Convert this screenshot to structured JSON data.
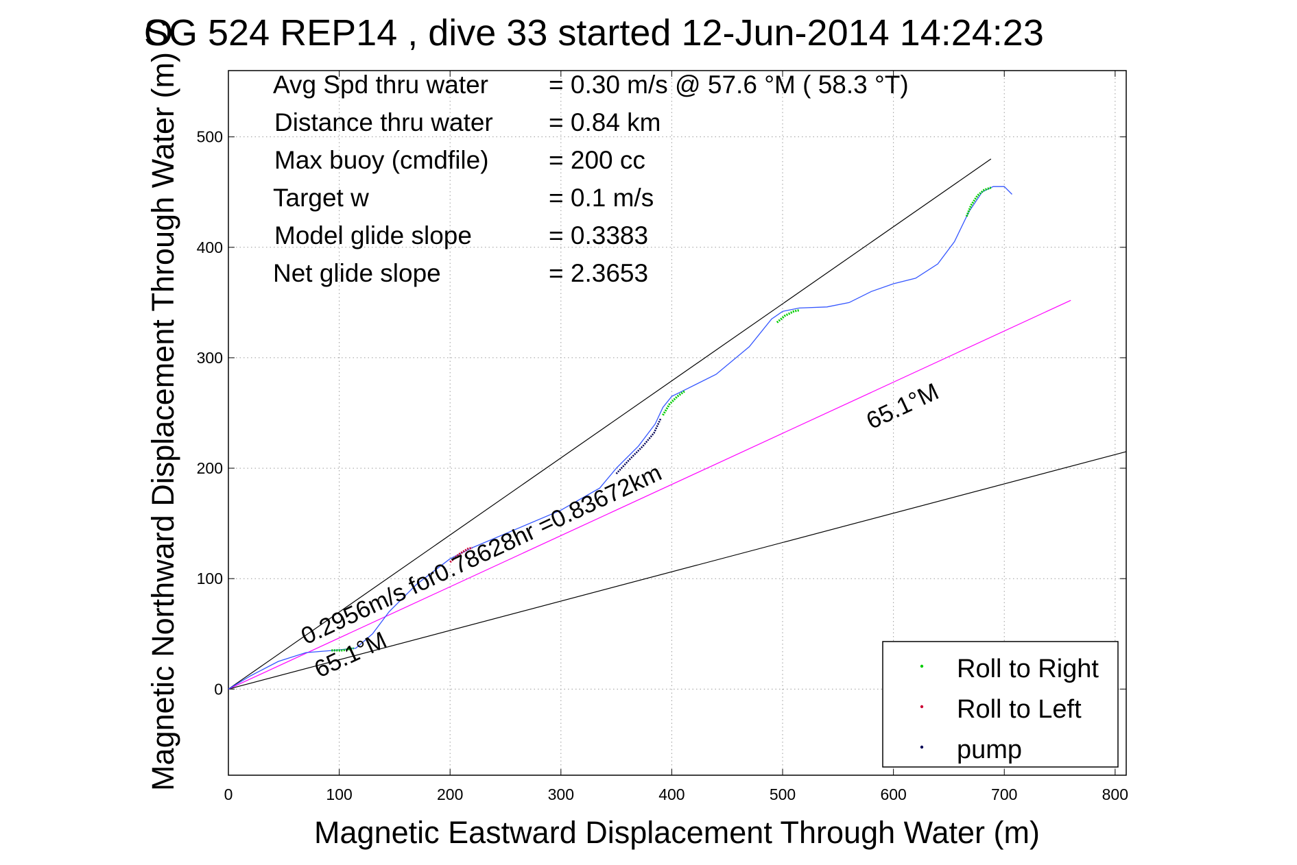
{
  "chart_data": {
    "type": "line",
    "title": "SG 524   REP14  , dive 33 started 12-Jun-2014 14:24:23",
    "title_overlap_char": "O",
    "xlabel": "Magnetic Eastward Displacement Through Water (m)",
    "ylabel": "Magnetic Northward Displacement Through Water (m)",
    "xlim": [
      0,
      810
    ],
    "ylim": [
      -78,
      560
    ],
    "xticks": [
      0,
      100,
      200,
      300,
      400,
      500,
      600,
      700,
      800
    ],
    "yticks": [
      0,
      100,
      200,
      300,
      400,
      500
    ],
    "xtick_labels": [
      "0",
      "100",
      "200",
      "300",
      "400",
      "500",
      "600",
      "700",
      "800"
    ],
    "ytick_labels": [
      "0",
      "100",
      "200",
      "300",
      "400",
      "500"
    ],
    "grid": true,
    "legend_position": "bottom-right",
    "stats": [
      {
        "label": "Avg Spd thru water",
        "value": "=  0.30 m/s @  57.6 °M ( 58.3 °T)"
      },
      {
        "label": "Distance thru water",
        "value": "=  0.84 km"
      },
      {
        "label": "Max buoy (cmdfile)",
        "value": "= 200 cc"
      },
      {
        "label": "Target w",
        "value": "= 0.1 m/s"
      },
      {
        "label": "Model glide slope",
        "value": "= 0.3383"
      },
      {
        "label": "Net glide slope",
        "value": "= 2.3653"
      }
    ],
    "track": {
      "color": "#3355ff",
      "x": [
        0,
        20,
        45,
        70,
        95,
        115,
        130,
        145,
        170,
        200,
        220,
        260,
        300,
        335,
        350,
        370,
        385,
        392,
        400,
        410,
        440,
        470,
        490,
        500,
        515,
        540,
        560,
        580,
        600,
        620,
        640,
        655,
        668,
        680,
        690,
        700,
        707
      ],
      "y": [
        0,
        12,
        25,
        33,
        35,
        37,
        50,
        70,
        95,
        118,
        128,
        145,
        162,
        182,
        200,
        220,
        240,
        255,
        265,
        270,
        285,
        310,
        335,
        342,
        345,
        346,
        350,
        360,
        367,
        372,
        385,
        405,
        432,
        450,
        455,
        455,
        448
      ]
    },
    "roll_right": {
      "color": "#00cc00",
      "segments": [
        {
          "x": [
            93,
            103,
            113
          ],
          "y": [
            35,
            35,
            37
          ]
        },
        {
          "x": [
            392,
            398,
            405,
            412
          ],
          "y": [
            248,
            258,
            265,
            270
          ]
        },
        {
          "x": [
            495,
            502,
            510,
            515
          ],
          "y": [
            332,
            338,
            342,
            343
          ]
        },
        {
          "x": [
            666,
            670,
            676,
            682,
            688
          ],
          "y": [
            428,
            438,
            447,
            452,
            454
          ]
        }
      ]
    },
    "roll_left": {
      "color": "#cc0033",
      "segments": [
        {
          "x": [
            200,
            208,
            216,
            220
          ],
          "y": [
            115,
            122,
            127,
            128
          ]
        }
      ]
    },
    "pump": {
      "color": "#000055",
      "segments": [
        {
          "x": [
            350,
            362,
            374,
            384,
            390
          ],
          "y": [
            195,
            208,
            220,
            232,
            245
          ]
        }
      ]
    },
    "magenta_line": {
      "color": "#ff00ff",
      "x": [
        0,
        760
      ],
      "y": [
        0,
        352
      ]
    },
    "upper_bound_line": {
      "color": "#000000",
      "x": [
        0,
        688
      ],
      "y": [
        0,
        480
      ]
    },
    "lower_bound_line": {
      "color": "#000000",
      "x": [
        0,
        810
      ],
      "y": [
        0,
        215
      ]
    },
    "annotations": [
      {
        "text": "0.2956m/s for0.78628hr =0.83672km",
        "x": 70,
        "y": 40,
        "angle": -25
      },
      {
        "text": "65.1°M",
        "x": 82,
        "y": 10,
        "angle": -25
      },
      {
        "text": "65.1°M",
        "x": 580,
        "y": 235,
        "angle": -25
      }
    ],
    "legend": [
      {
        "label": "Roll to Right",
        "color": "#00cc00"
      },
      {
        "label": "Roll to Left",
        "color": "#cc0033"
      },
      {
        "label": "pump",
        "color": "#000055"
      }
    ]
  }
}
